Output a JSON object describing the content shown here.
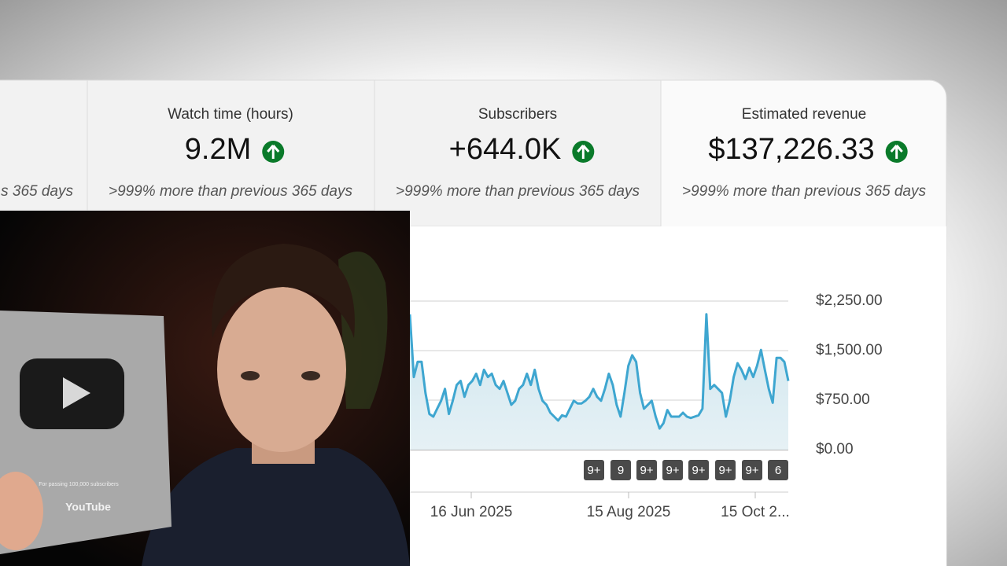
{
  "cards": [
    {
      "description": "s 365 days"
    },
    {
      "label": "Watch time (hours)",
      "value": "9.2M",
      "description": ">999% more than previous 365 days"
    },
    {
      "label": "Subscribers",
      "value": "+644.0K",
      "description": ">999% more than previous 365 days"
    },
    {
      "label": "Estimated revenue",
      "value": "$137,226.33",
      "description": ">999% more than previous 365 days"
    }
  ],
  "chart_data": {
    "type": "line",
    "color": "#3ea6d0",
    "grid": true,
    "ylim": [
      0,
      2250
    ],
    "yticks": [
      {
        "value": 0,
        "label": "$0.00"
      },
      {
        "value": 750,
        "label": "$750.00"
      },
      {
        "value": 1500,
        "label": "$1,500.00"
      },
      {
        "value": 2250,
        "label": "$2,250.00"
      }
    ],
    "x_tick_labels": [
      "16 Jun 2025",
      "15 Aug 2025",
      "15 Oct 2..."
    ],
    "values": [
      2050,
      1100,
      1330,
      1330,
      860,
      540,
      500,
      620,
      740,
      920,
      540,
      740,
      980,
      1040,
      800,
      980,
      1040,
      1150,
      980,
      1210,
      1100,
      1150,
      980,
      920,
      1040,
      860,
      680,
      740,
      920,
      980,
      1150,
      980,
      1210,
      920,
      740,
      680,
      560,
      500,
      440,
      520,
      500,
      620,
      740,
      700,
      700,
      740,
      800,
      920,
      800,
      740,
      920,
      1150,
      980,
      680,
      500,
      860,
      1270,
      1430,
      1330,
      860,
      620,
      680,
      740,
      500,
      320,
      400,
      600,
      500,
      500,
      500,
      560,
      500,
      480,
      500,
      520,
      620,
      2050,
      920,
      980,
      920,
      860,
      500,
      740,
      1100,
      1310,
      1210,
      1070,
      1240,
      1100,
      1270,
      1510,
      1210,
      920,
      710,
      1390,
      1390,
      1330,
      1040
    ],
    "badges": [
      "9+",
      "9",
      "9+",
      "9+",
      "9+",
      "9+",
      "9+",
      "6"
    ]
  },
  "plaque": {
    "caption": "For passing 100,000 subscribers",
    "brand": "YouTube"
  }
}
